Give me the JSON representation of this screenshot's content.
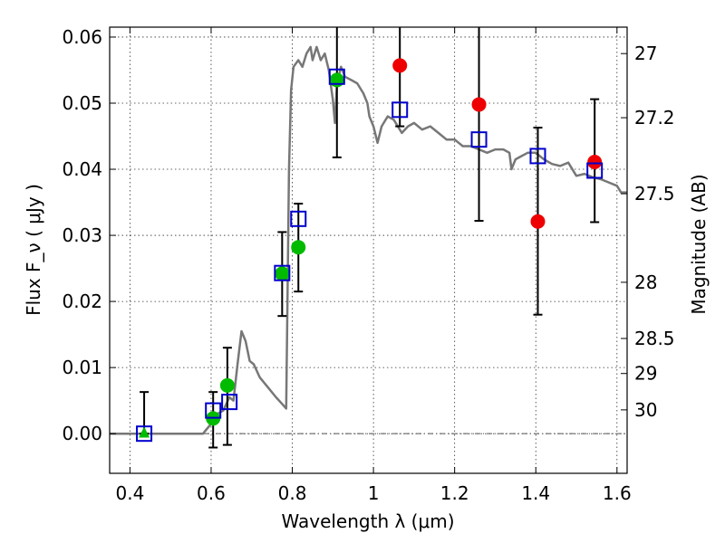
{
  "chart_data": {
    "type": "scatter",
    "xlabel": "Wavelength  λ (μm)",
    "ylabel": "Flux  F_ν  ( μJy )",
    "y2label": "Magnitude (AB)",
    "xlim": [
      0.35,
      1.625
    ],
    "ylim": [
      -0.006,
      0.0615
    ],
    "grid": true,
    "x_ticks": [
      0.4,
      0.6,
      0.8,
      1.0,
      1.2,
      1.4,
      1.6
    ],
    "x_tick_labels": [
      "0.4",
      "0.6",
      "0.8",
      "1",
      "1.2",
      "1.4",
      "1.6"
    ],
    "y_ticks": [
      0.0,
      0.01,
      0.02,
      0.03,
      0.04,
      0.05,
      0.06
    ],
    "y_tick_labels": [
      "0.00",
      "0.01",
      "0.02",
      "0.03",
      "0.04",
      "0.05",
      "0.06"
    ],
    "y2_ticks": [
      {
        "label": "27",
        "flux": 0.0575
      },
      {
        "label": "27.2",
        "flux": 0.0478
      },
      {
        "label": "27.5",
        "flux": 0.0363
      },
      {
        "label": "28",
        "flux": 0.0229
      },
      {
        "label": "28.5",
        "flux": 0.0144
      },
      {
        "label": "29",
        "flux": 0.0091
      },
      {
        "label": "30",
        "flux": 0.0036
      }
    ],
    "colors": {
      "model": "#777777",
      "model_points": "#0000cc",
      "detections": "#00bb00",
      "other_points": "#ee0000",
      "errorbars": "#000000"
    },
    "series": [
      {
        "kind": "line",
        "points": [
          [
            0.35,
            0.0
          ],
          [
            0.58,
            0.0
          ],
          [
            0.6,
            0.0015
          ],
          [
            0.615,
            0.003
          ],
          [
            0.63,
            0.0035
          ],
          [
            0.645,
            0.0055
          ],
          [
            0.655,
            0.005
          ],
          [
            0.665,
            0.0105
          ],
          [
            0.675,
            0.0155
          ],
          [
            0.685,
            0.014
          ],
          [
            0.695,
            0.011
          ],
          [
            0.705,
            0.0105
          ],
          [
            0.72,
            0.0085
          ],
          [
            0.74,
            0.007
          ],
          [
            0.76,
            0.0055
          ],
          [
            0.775,
            0.0045
          ],
          [
            0.785,
            0.0038
          ],
          [
            0.788,
            0.02
          ],
          [
            0.792,
            0.04
          ],
          [
            0.797,
            0.052
          ],
          [
            0.803,
            0.0555
          ],
          [
            0.815,
            0.0565
          ],
          [
            0.825,
            0.0555
          ],
          [
            0.835,
            0.0575
          ],
          [
            0.845,
            0.0585
          ],
          [
            0.85,
            0.0565
          ],
          [
            0.86,
            0.0585
          ],
          [
            0.87,
            0.0565
          ],
          [
            0.88,
            0.0575
          ],
          [
            0.89,
            0.055
          ],
          [
            0.9,
            0.0505
          ],
          [
            0.905,
            0.047
          ],
          [
            0.91,
            0.053
          ],
          [
            0.92,
            0.0555
          ],
          [
            0.93,
            0.054
          ],
          [
            0.945,
            0.0535
          ],
          [
            0.96,
            0.053
          ],
          [
            0.975,
            0.0515
          ],
          [
            0.985,
            0.05
          ],
          [
            0.99,
            0.048
          ],
          [
            1.0,
            0.0465
          ],
          [
            1.01,
            0.044
          ],
          [
            1.02,
            0.0465
          ],
          [
            1.035,
            0.048
          ],
          [
            1.05,
            0.0475
          ],
          [
            1.07,
            0.0455
          ],
          [
            1.085,
            0.0465
          ],
          [
            1.1,
            0.047
          ],
          [
            1.12,
            0.046
          ],
          [
            1.14,
            0.0465
          ],
          [
            1.16,
            0.0455
          ],
          [
            1.18,
            0.0445
          ],
          [
            1.2,
            0.0445
          ],
          [
            1.22,
            0.0435
          ],
          [
            1.24,
            0.0435
          ],
          [
            1.26,
            0.043
          ],
          [
            1.28,
            0.0425
          ],
          [
            1.3,
            0.043
          ],
          [
            1.32,
            0.043
          ],
          [
            1.335,
            0.0425
          ],
          [
            1.34,
            0.04
          ],
          [
            1.35,
            0.0415
          ],
          [
            1.365,
            0.042
          ],
          [
            1.38,
            0.0425
          ],
          [
            1.4,
            0.0425
          ],
          [
            1.42,
            0.0415
          ],
          [
            1.44,
            0.0408
          ],
          [
            1.46,
            0.0405
          ],
          [
            1.48,
            0.041
          ],
          [
            1.5,
            0.039
          ],
          [
            1.52,
            0.0393
          ],
          [
            1.54,
            0.0388
          ],
          [
            1.56,
            0.0385
          ],
          [
            1.58,
            0.038
          ],
          [
            1.6,
            0.0375
          ],
          [
            1.61,
            0.0365
          ],
          [
            1.625,
            0.0365
          ]
        ]
      },
      {
        "kind": "squares",
        "points": [
          [
            0.435,
            0.0
          ],
          [
            0.605,
            0.0035
          ],
          [
            0.645,
            0.0048
          ],
          [
            0.775,
            0.0243
          ],
          [
            0.815,
            0.0325
          ],
          [
            0.91,
            0.054
          ],
          [
            1.065,
            0.049
          ],
          [
            1.26,
            0.0445
          ],
          [
            1.405,
            0.042
          ],
          [
            1.545,
            0.0398
          ]
        ]
      },
      {
        "kind": "green-circles",
        "points": [
          [
            0.605,
            0.0023
          ],
          [
            0.64,
            0.0073
          ],
          [
            0.775,
            0.0242
          ],
          [
            0.815,
            0.0282
          ],
          [
            0.91,
            0.0535
          ]
        ]
      },
      {
        "kind": "green-triangle",
        "points": [
          [
            0.435,
            0.0001
          ]
        ]
      },
      {
        "kind": "red-circles",
        "points": [
          [
            1.065,
            0.0557
          ],
          [
            1.26,
            0.0498
          ],
          [
            1.405,
            0.0321
          ],
          [
            1.545,
            0.0411
          ]
        ]
      },
      {
        "kind": "errorbars",
        "points": [
          {
            "x": 0.435,
            "low": 0.0,
            "high": 0.0063
          },
          {
            "x": 0.605,
            "low": -0.0021,
            "high": 0.0063
          },
          {
            "x": 0.64,
            "low": -0.0017,
            "high": 0.013
          },
          {
            "x": 0.775,
            "low": 0.0178,
            "high": 0.0305
          },
          {
            "x": 0.815,
            "low": 0.0215,
            "high": 0.0348
          },
          {
            "x": 0.91,
            "low": 0.0418,
            "high": 0.0615
          },
          {
            "x": 1.065,
            "low": 0.0465,
            "high": 0.0615
          },
          {
            "x": 1.26,
            "low": 0.0322,
            "high": 0.0615
          },
          {
            "x": 1.405,
            "low": 0.018,
            "high": 0.0463
          },
          {
            "x": 1.545,
            "low": 0.032,
            "high": 0.0506
          }
        ]
      }
    ]
  }
}
